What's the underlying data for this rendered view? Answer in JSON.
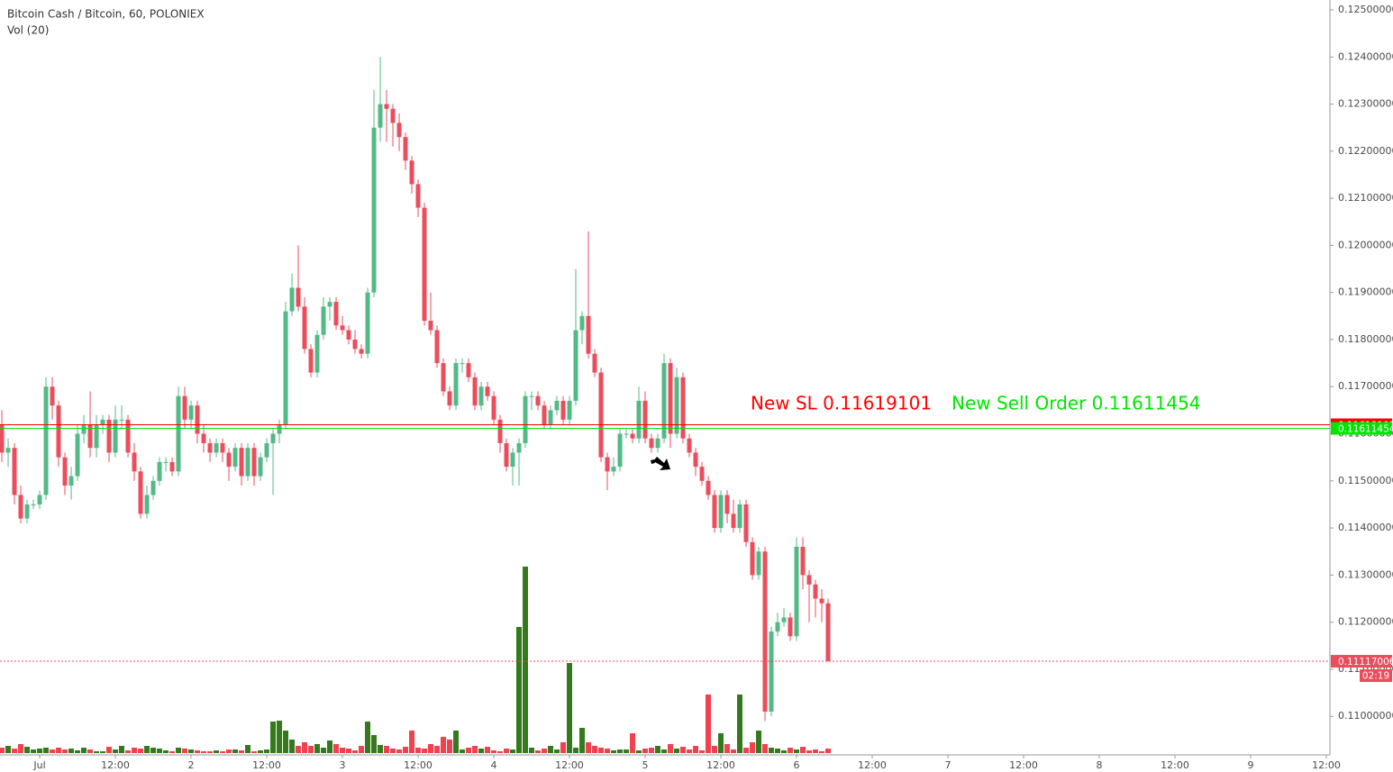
{
  "chart_data": {
    "type": "candlestick",
    "title": "Bitcoin Cash / Bitcoin, 60, POLONIEX",
    "subtitle": "Vol (20)",
    "up_color": "#53b987",
    "down_color": "#eb4d5c",
    "volume_up_color": "#347a1d",
    "volume_down_color": "#f0414f",
    "xlim": [
      -6.29,
      204.57
    ],
    "ylim": [
      0.10922,
      0.12521
    ],
    "yticks": [
      {
        "value": 0.11,
        "label": "0.11000000"
      },
      {
        "value": 0.111,
        "label": "0.11100000"
      },
      {
        "value": 0.112,
        "label": "0.11200000"
      },
      {
        "value": 0.113,
        "label": "0.11300000"
      },
      {
        "value": 0.114,
        "label": "0.11400000"
      },
      {
        "value": 0.115,
        "label": "0.11500000"
      },
      {
        "value": 0.116,
        "label": "0.11600000"
      },
      {
        "value": 0.117,
        "label": "0.11700000"
      },
      {
        "value": 0.118,
        "label": "0.11800000"
      },
      {
        "value": 0.119,
        "label": "0.11900000"
      },
      {
        "value": 0.12,
        "label": "0.12000000"
      },
      {
        "value": 0.121,
        "label": "0.12100000"
      },
      {
        "value": 0.122,
        "label": "0.12200000"
      },
      {
        "value": 0.123,
        "label": "0.12300000"
      },
      {
        "value": 0.124,
        "label": "0.12400000"
      },
      {
        "value": 0.125,
        "label": "0.12500000"
      }
    ],
    "xticks": [
      {
        "value": 0,
        "label": "Jul"
      },
      {
        "value": 12,
        "label": "12:00"
      },
      {
        "value": 24,
        "label": "2"
      },
      {
        "value": 36,
        "label": "12:00"
      },
      {
        "value": 48,
        "label": "3"
      },
      {
        "value": 60,
        "label": "12:00"
      },
      {
        "value": 72,
        "label": "4"
      },
      {
        "value": 84,
        "label": "12:00"
      },
      {
        "value": 96,
        "label": "5"
      },
      {
        "value": 108,
        "label": "12:00"
      },
      {
        "value": 120,
        "label": "6"
      },
      {
        "value": 132,
        "label": "12:00"
      },
      {
        "value": 144,
        "label": "7"
      },
      {
        "value": 156,
        "label": "12:00"
      },
      {
        "value": 168,
        "label": "8"
      },
      {
        "value": 180,
        "label": "12:00"
      },
      {
        "value": 192,
        "label": "9"
      },
      {
        "value": 204,
        "label": "12:00"
      }
    ],
    "x": [
      -6,
      -5,
      -4,
      -3,
      -2,
      -1,
      0,
      1,
      2,
      3,
      4,
      5,
      6,
      7,
      8,
      9,
      10,
      11,
      12,
      13,
      14,
      15,
      16,
      17,
      18,
      19,
      20,
      21,
      22,
      23,
      24,
      25,
      26,
      27,
      28,
      29,
      30,
      31,
      32,
      33,
      34,
      35,
      36,
      37,
      38,
      39,
      40,
      41,
      42,
      43,
      44,
      45,
      46,
      47,
      48,
      49,
      50,
      51,
      52,
      53,
      54,
      55,
      56,
      57,
      58,
      59,
      60,
      61,
      62,
      63,
      64,
      65,
      66,
      67,
      68,
      69,
      70,
      71,
      72,
      73,
      74,
      75,
      76,
      77,
      78,
      79,
      80,
      81,
      82,
      83,
      84,
      85,
      86,
      87,
      88,
      89,
      90,
      91,
      92,
      93,
      94,
      95,
      96,
      97,
      98,
      99,
      100,
      101,
      102,
      103,
      104,
      105,
      106,
      107,
      108,
      109,
      110,
      111,
      112,
      113,
      114,
      115,
      116,
      117,
      118,
      119,
      120,
      121,
      122,
      123,
      124,
      125
    ],
    "ohlc": [
      [
        0.1162,
        0.1165,
        0.1154,
        0.1156
      ],
      [
        0.1156,
        0.1159,
        0.1153,
        0.1157
      ],
      [
        0.1157,
        0.1158,
        0.1145,
        0.1147
      ],
      [
        0.1147,
        0.1149,
        0.1141,
        0.1142
      ],
      [
        0.1142,
        0.1146,
        0.1141,
        0.1145
      ],
      [
        0.1145,
        0.1146,
        0.1144,
        0.1145
      ],
      [
        0.1145,
        0.1148,
        0.1144,
        0.1147
      ],
      [
        0.1147,
        0.1172,
        0.1146,
        0.117
      ],
      [
        0.117,
        0.1172,
        0.1163,
        0.1166
      ],
      [
        0.1166,
        0.1167,
        0.1153,
        0.1155
      ],
      [
        0.1155,
        0.1156,
        0.1147,
        0.1149
      ],
      [
        0.1149,
        0.1153,
        0.1146,
        0.1151
      ],
      [
        0.1151,
        0.1162,
        0.115,
        0.116
      ],
      [
        0.116,
        0.1164,
        0.1158,
        0.1162
      ],
      [
        0.1162,
        0.1169,
        0.1155,
        0.1157
      ],
      [
        0.1157,
        0.1164,
        0.1155,
        0.1162
      ],
      [
        0.1162,
        0.1164,
        0.116,
        0.1163
      ],
      [
        0.1163,
        0.1164,
        0.1154,
        0.1156
      ],
      [
        0.1156,
        0.1166,
        0.1155,
        0.1163
      ],
      [
        0.1163,
        0.1166,
        0.1161,
        0.1163
      ],
      [
        0.1163,
        0.1164,
        0.1155,
        0.1156
      ],
      [
        0.1156,
        0.1158,
        0.115,
        0.1152
      ],
      [
        0.1152,
        0.1153,
        0.1142,
        0.1143
      ],
      [
        0.1143,
        0.1149,
        0.1142,
        0.1147
      ],
      [
        0.1147,
        0.1151,
        0.1146,
        0.115
      ],
      [
        0.115,
        0.1155,
        0.1149,
        0.1154
      ],
      [
        0.1154,
        0.1155,
        0.1152,
        0.1154
      ],
      [
        0.1154,
        0.1155,
        0.1151,
        0.1152
      ],
      [
        0.1152,
        0.117,
        0.1151,
        0.1168
      ],
      [
        0.1168,
        0.117,
        0.1161,
        0.1163
      ],
      [
        0.1163,
        0.1167,
        0.1161,
        0.1166
      ],
      [
        0.1166,
        0.1167,
        0.1158,
        0.116
      ],
      [
        0.116,
        0.1162,
        0.1156,
        0.1158
      ],
      [
        0.1158,
        0.1159,
        0.1154,
        0.1156
      ],
      [
        0.1156,
        0.1159,
        0.1155,
        0.1158
      ],
      [
        0.1158,
        0.1159,
        0.1154,
        0.1156
      ],
      [
        0.1156,
        0.1157,
        0.115,
        0.1153
      ],
      [
        0.1153,
        0.1158,
        0.1152,
        0.1157
      ],
      [
        0.1157,
        0.1158,
        0.1149,
        0.1151
      ],
      [
        0.1151,
        0.1158,
        0.115,
        0.1157
      ],
      [
        0.1157,
        0.1158,
        0.1149,
        0.1151
      ],
      [
        0.1151,
        0.1156,
        0.115,
        0.1155
      ],
      [
        0.1155,
        0.1159,
        0.1154,
        0.1158
      ],
      [
        0.1158,
        0.1161,
        0.1147,
        0.116
      ],
      [
        0.116,
        0.1163,
        0.1158,
        0.1162
      ],
      [
        0.1162,
        0.1188,
        0.1161,
        0.1186
      ],
      [
        0.1186,
        0.1194,
        0.1185,
        0.1191
      ],
      [
        0.1191,
        0.12,
        0.1186,
        0.1187
      ],
      [
        0.1187,
        0.1189,
        0.1177,
        0.1178
      ],
      [
        0.1178,
        0.1179,
        0.1172,
        0.1173
      ],
      [
        0.1173,
        0.1182,
        0.1172,
        0.1181
      ],
      [
        0.1181,
        0.1189,
        0.118,
        0.1187
      ],
      [
        0.1187,
        0.1189,
        0.1184,
        0.1188
      ],
      [
        0.1188,
        0.1189,
        0.1182,
        0.1183
      ],
      [
        0.1183,
        0.1185,
        0.1181,
        0.1182
      ],
      [
        0.1182,
        0.1183,
        0.1179,
        0.118
      ],
      [
        0.118,
        0.1182,
        0.1177,
        0.1178
      ],
      [
        0.1178,
        0.1179,
        0.1176,
        0.1177
      ],
      [
        0.1177,
        0.1191,
        0.1176,
        0.119
      ],
      [
        0.119,
        0.1233,
        0.1189,
        0.1225
      ],
      [
        0.1225,
        0.124,
        0.1222,
        0.123
      ],
      [
        0.123,
        0.1233,
        0.1222,
        0.1229
      ],
      [
        0.1229,
        0.123,
        0.1221,
        0.1226
      ],
      [
        0.1226,
        0.1228,
        0.122,
        0.1223
      ],
      [
        0.1223,
        0.1224,
        0.1216,
        0.1218
      ],
      [
        0.1218,
        0.1219,
        0.1211,
        0.1213
      ],
      [
        0.1213,
        0.1214,
        0.1206,
        0.1208
      ],
      [
        0.1208,
        0.1209,
        0.1183,
        0.1184
      ],
      [
        0.1184,
        0.119,
        0.1181,
        0.1182
      ],
      [
        0.1182,
        0.1183,
        0.1174,
        0.1175
      ],
      [
        0.1175,
        0.1176,
        0.1168,
        0.1169
      ],
      [
        0.1169,
        0.117,
        0.1165,
        0.1166
      ],
      [
        0.1166,
        0.1176,
        0.1165,
        0.1175
      ],
      [
        0.1175,
        0.1176,
        0.1173,
        0.1175
      ],
      [
        0.1175,
        0.1176,
        0.1171,
        0.1172
      ],
      [
        0.1172,
        0.1173,
        0.1165,
        0.1166
      ],
      [
        0.1166,
        0.1171,
        0.1165,
        0.117
      ],
      [
        0.117,
        0.1171,
        0.1167,
        0.1168
      ],
      [
        0.1168,
        0.1169,
        0.1162,
        0.1163
      ],
      [
        0.1163,
        0.1164,
        0.1156,
        0.1158
      ],
      [
        0.1158,
        0.1159,
        0.1152,
        0.1153
      ],
      [
        0.1153,
        0.1157,
        0.1149,
        0.1156
      ],
      [
        0.1156,
        0.1159,
        0.1149,
        0.1158
      ],
      [
        0.1158,
        0.1169,
        0.1157,
        0.1168
      ],
      [
        0.1168,
        0.1169,
        0.1165,
        0.1168
      ],
      [
        0.1168,
        0.1169,
        0.1165,
        0.1166
      ],
      [
        0.1166,
        0.1167,
        0.1161,
        0.1162
      ],
      [
        0.1162,
        0.1166,
        0.1161,
        0.1165
      ],
      [
        0.1165,
        0.1168,
        0.1164,
        0.1167
      ],
      [
        0.1167,
        0.1168,
        0.1162,
        0.1163
      ],
      [
        0.1163,
        0.1168,
        0.1162,
        0.1167
      ],
      [
        0.1167,
        0.1195,
        0.1166,
        0.1182
      ],
      [
        0.1182,
        0.1186,
        0.1179,
        0.1185
      ],
      [
        0.1185,
        0.1203,
        0.1176,
        0.1177
      ],
      [
        0.1177,
        0.1178,
        0.1172,
        0.1173
      ],
      [
        0.1173,
        0.1174,
        0.1154,
        0.1155
      ],
      [
        0.1155,
        0.1156,
        0.1148,
        0.1152
      ],
      [
        0.1152,
        0.1155,
        0.1151,
        0.1153
      ],
      [
        0.1153,
        0.1161,
        0.1152,
        0.116
      ],
      [
        0.116,
        0.1161,
        0.1159,
        0.116
      ],
      [
        0.116,
        0.1161,
        0.1158,
        0.1159
      ],
      [
        0.1159,
        0.117,
        0.1158,
        0.1167
      ],
      [
        0.1167,
        0.1169,
        0.1158,
        0.1159
      ],
      [
        0.1159,
        0.116,
        0.1156,
        0.1157
      ],
      [
        0.1157,
        0.116,
        0.1156,
        0.1159
      ],
      [
        0.1159,
        0.1177,
        0.1158,
        0.1175
      ],
      [
        0.1175,
        0.1176,
        0.1157,
        0.116
      ],
      [
        0.116,
        0.1174,
        0.1159,
        0.1172
      ],
      [
        0.1172,
        0.1173,
        0.1158,
        0.1159
      ],
      [
        0.1159,
        0.116,
        0.1155,
        0.1156
      ],
      [
        0.1156,
        0.1157,
        0.1151,
        0.1153
      ],
      [
        0.1153,
        0.1154,
        0.1149,
        0.115
      ],
      [
        0.115,
        0.1151,
        0.1146,
        0.1147
      ],
      [
        0.1147,
        0.1148,
        0.1139,
        0.114
      ],
      [
        0.114,
        0.1148,
        0.1139,
        0.1147
      ],
      [
        0.1147,
        0.1148,
        0.1141,
        0.1143
      ],
      [
        0.1143,
        0.1146,
        0.1139,
        0.114
      ],
      [
        0.114,
        0.1146,
        0.1139,
        0.1145
      ],
      [
        0.1145,
        0.1146,
        0.1136,
        0.1137
      ],
      [
        0.1137,
        0.1138,
        0.1129,
        0.113
      ],
      [
        0.113,
        0.1136,
        0.1129,
        0.1135
      ],
      [
        0.1135,
        0.1136,
        0.1099,
        0.1101
      ],
      [
        0.1101,
        0.1119,
        0.11,
        0.1118
      ],
      [
        0.1118,
        0.1122,
        0.1117,
        0.112
      ],
      [
        0.112,
        0.1123,
        0.1119,
        0.1121
      ],
      [
        0.1121,
        0.1122,
        0.1116,
        0.1117
      ],
      [
        0.1117,
        0.1138,
        0.1116,
        0.1136
      ],
      [
        0.1136,
        0.1138,
        0.1127,
        0.113
      ],
      [
        0.113,
        0.1131,
        0.112,
        0.1128
      ],
      [
        0.1128,
        0.1129,
        0.1121,
        0.1125
      ],
      [
        0.1125,
        0.1127,
        0.112,
        0.1124
      ],
      [
        0.1124,
        0.1125,
        0.11117006,
        0.11117006
      ]
    ],
    "volume": [
      6,
      8,
      5,
      10,
      7,
      4,
      5,
      6,
      4,
      6,
      4,
      5,
      3,
      6,
      4,
      2,
      2,
      7,
      4,
      8,
      3,
      6,
      5,
      8,
      6,
      5,
      3,
      2,
      6,
      5,
      4,
      3,
      2,
      2,
      3,
      2,
      4,
      4,
      3,
      9,
      2,
      3,
      4,
      35,
      36,
      25,
      15,
      8,
      12,
      8,
      10,
      6,
      14,
      10,
      6,
      5,
      3,
      8,
      35,
      20,
      9,
      8,
      5,
      4,
      7,
      25,
      6,
      5,
      10,
      8,
      18,
      15,
      25,
      4,
      6,
      8,
      5,
      7,
      3,
      2,
      5,
      4,
      140,
      207,
      6,
      3,
      5,
      8,
      4,
      12,
      100,
      6,
      28,
      12,
      8,
      6,
      5,
      3,
      4,
      4,
      22,
      3,
      5,
      6,
      8,
      4,
      10,
      5,
      7,
      4,
      8,
      3,
      65,
      8,
      22,
      10,
      4,
      65,
      6,
      12,
      25,
      10,
      6,
      5,
      3,
      6,
      4,
      7,
      3,
      4,
      2,
      5
    ],
    "levels": [
      {
        "value": 0.11619101,
        "color": "#ff0000",
        "style": "solid"
      },
      {
        "value": 0.11611454,
        "color": "#00e600",
        "style": "solid"
      },
      {
        "value": 0.11117006,
        "color": "#eb4d5c",
        "style": "dotted"
      }
    ],
    "countdown": "02:19",
    "annotations": [
      {
        "text": "New SL 0.11619101",
        "color": "#ff0000"
      },
      {
        "text": "New Sell Order 0.11611454",
        "color": "#00e600"
      }
    ]
  }
}
